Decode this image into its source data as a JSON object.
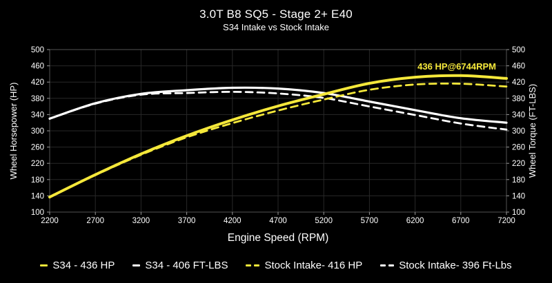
{
  "title": "3.0T B8 SQ5 - Stage 2+ E40",
  "subtitle": "S34 Intake vs Stock Intake",
  "chart_data": {
    "type": "line",
    "xlabel": "Engine Speed (RPM)",
    "ylabel_left": "Wheel Horsepower (HP)",
    "ylabel_right": "Wheel Torque (FT-LBS)",
    "xlim": [
      2200,
      7200
    ],
    "ylim": [
      100,
      500
    ],
    "x_ticks": [
      2200,
      2700,
      3200,
      3700,
      4200,
      4700,
      5200,
      5700,
      6200,
      6700,
      7200
    ],
    "y_ticks": [
      100,
      140,
      180,
      220,
      260,
      300,
      340,
      380,
      420,
      460,
      500
    ],
    "grid": true,
    "legend_position": "bottom",
    "colors": {
      "background": "#000000",
      "grid": "#282828",
      "frame": "#555555",
      "tick": "#999999",
      "text": "#ffffff",
      "accent_yellow": "#f5e83a",
      "accent_white": "#ffffff"
    },
    "x": [
      2200,
      2700,
      3200,
      3700,
      4200,
      4700,
      5200,
      5700,
      6200,
      6700,
      7200
    ],
    "series": [
      {
        "name": "S34 - 436 HP",
        "axis": "left",
        "color": "#f5e83a",
        "style": "solid",
        "values": [
          137,
          192,
          243,
          288,
          327,
          361,
          390,
          417,
          432,
          436,
          429
        ]
      },
      {
        "name": "S34 - 406 FT-LBS",
        "axis": "right",
        "color": "#ffffff",
        "style": "solid",
        "values": [
          330,
          368,
          391,
          400,
          406,
          404,
          393,
          372,
          351,
          331,
          320
        ]
      },
      {
        "name": "Stock Intake- 416 HP",
        "axis": "left",
        "color": "#f5e83a",
        "style": "dashed",
        "values": [
          137,
          191,
          241,
          284,
          319,
          350,
          377,
          401,
          414,
          416,
          409
        ]
      },
      {
        "name": "Stock Intake- 396 Ft-Lbs",
        "axis": "right",
        "color": "#ffffff",
        "style": "dashed",
        "values": [
          330,
          367,
          389,
          393,
          396,
          392,
          381,
          360,
          339,
          318,
          303
        ]
      }
    ],
    "annotation": {
      "text": "436 HP@6744RPM",
      "rpm": 6744,
      "value": 436,
      "color": "#f5e83a"
    },
    "legend": [
      {
        "label": "S34 - 436 HP",
        "color": "#f5e83a",
        "style": "solid"
      },
      {
        "label": "S34 - 406 FT-LBS",
        "color": "#ffffff",
        "style": "solid"
      },
      {
        "label": "Stock Intake- 416 HP",
        "color": "#f5e83a",
        "style": "dashed"
      },
      {
        "label": "Stock Intake- 396 Ft-Lbs",
        "color": "#ffffff",
        "style": "dashed"
      }
    ]
  }
}
